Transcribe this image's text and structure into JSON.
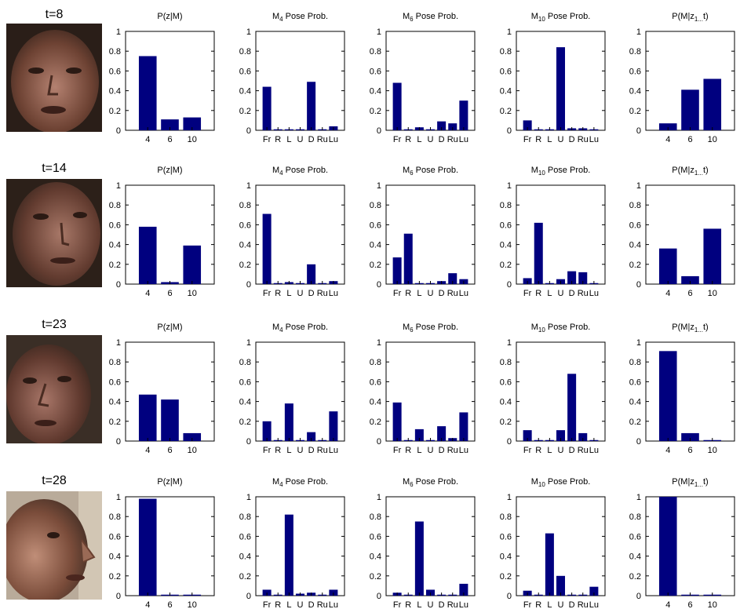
{
  "bar_color": "#00007f",
  "rows": [
    {
      "time_label": "t=8",
      "face_icon": "face-photo-icon",
      "charts": [
        {
          "type": "bar",
          "title": "P(z|M)",
          "categories": [
            "4",
            "6",
            "10"
          ],
          "values": [
            0.75,
            0.11,
            0.13
          ],
          "ylim": [
            0,
            1
          ],
          "yticks": [
            "0",
            "0.2",
            "0.4",
            "0.6",
            "0.8",
            "1"
          ]
        },
        {
          "type": "bar",
          "title": "M4 Pose Prob.",
          "categories": [
            "Fr",
            "R",
            "L",
            "U",
            "D",
            "Ru",
            "Lu"
          ],
          "values": [
            0.44,
            0.01,
            0.01,
            0.01,
            0.49,
            0.01,
            0.04
          ],
          "ylim": [
            0,
            1
          ],
          "yticks": [
            "0",
            "0.2",
            "0.4",
            "0.6",
            "0.8",
            "1"
          ]
        },
        {
          "type": "bar",
          "title": "M6 Pose Prob.",
          "categories": [
            "Fr",
            "R",
            "L",
            "U",
            "D",
            "Ru",
            "Lu"
          ],
          "values": [
            0.48,
            0.01,
            0.03,
            0.01,
            0.09,
            0.07,
            0.3
          ],
          "ylim": [
            0,
            1
          ],
          "yticks": [
            "0",
            "0.2",
            "0.4",
            "0.6",
            "0.8",
            "1"
          ]
        },
        {
          "type": "bar",
          "title": "M10 Pose Prob.",
          "categories": [
            "Fr",
            "R",
            "L",
            "U",
            "D",
            "Ru",
            "Lu"
          ],
          "values": [
            0.1,
            0.01,
            0.01,
            0.84,
            0.02,
            0.02,
            0.01
          ],
          "ylim": [
            0,
            1
          ],
          "yticks": [
            "0",
            "0.2",
            "0.4",
            "0.6",
            "0.8",
            "1"
          ]
        },
        {
          "type": "bar",
          "title": "P(M|z1...t)",
          "categories": [
            "4",
            "6",
            "10"
          ],
          "values": [
            0.07,
            0.41,
            0.52
          ],
          "ylim": [
            0,
            1
          ],
          "yticks": [
            "0",
            "0.2",
            "0.4",
            "0.6",
            "0.8",
            "1"
          ]
        }
      ]
    },
    {
      "time_label": "t=14",
      "face_icon": "face-photo-icon",
      "charts": [
        {
          "type": "bar",
          "title": "P(z|M)",
          "categories": [
            "4",
            "6",
            "10"
          ],
          "values": [
            0.58,
            0.02,
            0.39
          ],
          "ylim": [
            0,
            1
          ],
          "yticks": [
            "0",
            "0.2",
            "0.4",
            "0.6",
            "0.8",
            "1"
          ]
        },
        {
          "type": "bar",
          "title": "M4 Pose Prob.",
          "categories": [
            "Fr",
            "R",
            "L",
            "U",
            "D",
            "Ru",
            "Lu"
          ],
          "values": [
            0.71,
            0.01,
            0.02,
            0.01,
            0.2,
            0.01,
            0.03
          ],
          "ylim": [
            0,
            1
          ],
          "yticks": [
            "0",
            "0.2",
            "0.4",
            "0.6",
            "0.8",
            "1"
          ]
        },
        {
          "type": "bar",
          "title": "M6 Pose Prob.",
          "categories": [
            "Fr",
            "R",
            "L",
            "U",
            "D",
            "Ru",
            "Lu"
          ],
          "values": [
            0.27,
            0.51,
            0.01,
            0.01,
            0.03,
            0.11,
            0.05
          ],
          "ylim": [
            0,
            1
          ],
          "yticks": [
            "0",
            "0.2",
            "0.4",
            "0.6",
            "0.8",
            "1"
          ]
        },
        {
          "type": "bar",
          "title": "M10 Pose Prob.",
          "categories": [
            "Fr",
            "R",
            "L",
            "U",
            "D",
            "Ru",
            "Lu"
          ],
          "values": [
            0.06,
            0.62,
            0.01,
            0.05,
            0.13,
            0.12,
            0.01
          ],
          "ylim": [
            0,
            1
          ],
          "yticks": [
            "0",
            "0.2",
            "0.4",
            "0.6",
            "0.8",
            "1"
          ]
        },
        {
          "type": "bar",
          "title": "P(M|z1...t)",
          "categories": [
            "4",
            "6",
            "10"
          ],
          "values": [
            0.36,
            0.08,
            0.56
          ],
          "ylim": [
            0,
            1
          ],
          "yticks": [
            "0",
            "0.2",
            "0.4",
            "0.6",
            "0.8",
            "1"
          ]
        }
      ]
    },
    {
      "time_label": "t=23",
      "face_icon": "face-photo-icon",
      "charts": [
        {
          "type": "bar",
          "title": "P(z|M)",
          "categories": [
            "4",
            "6",
            "10"
          ],
          "values": [
            0.47,
            0.42,
            0.08
          ],
          "ylim": [
            0,
            1
          ],
          "yticks": [
            "0",
            "0.2",
            "0.4",
            "0.6",
            "0.8",
            "1"
          ]
        },
        {
          "type": "bar",
          "title": "M4 Pose Prob.",
          "categories": [
            "Fr",
            "R",
            "L",
            "U",
            "D",
            "Ru",
            "Lu"
          ],
          "values": [
            0.2,
            0.01,
            0.38,
            0.01,
            0.09,
            0.01,
            0.3
          ],
          "ylim": [
            0,
            1
          ],
          "yticks": [
            "0",
            "0.2",
            "0.4",
            "0.6",
            "0.8",
            "1"
          ]
        },
        {
          "type": "bar",
          "title": "M6 Pose Prob.",
          "categories": [
            "Fr",
            "R",
            "L",
            "U",
            "D",
            "Ru",
            "Lu"
          ],
          "values": [
            0.39,
            0.01,
            0.12,
            0.01,
            0.15,
            0.03,
            0.29
          ],
          "ylim": [
            0,
            1
          ],
          "yticks": [
            "0",
            "0.2",
            "0.4",
            "0.6",
            "0.8",
            "1"
          ]
        },
        {
          "type": "bar",
          "title": "M10 Pose Prob.",
          "categories": [
            "Fr",
            "R",
            "L",
            "U",
            "D",
            "Ru",
            "Lu"
          ],
          "values": [
            0.11,
            0.01,
            0.01,
            0.11,
            0.68,
            0.08,
            0.01
          ],
          "ylim": [
            0,
            1
          ],
          "yticks": [
            "0",
            "0.2",
            "0.4",
            "0.6",
            "0.8",
            "1"
          ]
        },
        {
          "type": "bar",
          "title": "P(M|z1...t)",
          "categories": [
            "4",
            "6",
            "10"
          ],
          "values": [
            0.91,
            0.08,
            0.01
          ],
          "ylim": [
            0,
            1
          ],
          "yticks": [
            "0",
            "0.2",
            "0.4",
            "0.6",
            "0.8",
            "1"
          ]
        }
      ]
    },
    {
      "time_label": "t=28",
      "face_icon": "face-photo-icon",
      "charts": [
        {
          "type": "bar",
          "title": "P(z|M)",
          "categories": [
            "4",
            "6",
            "10"
          ],
          "values": [
            0.98,
            0.01,
            0.01
          ],
          "ylim": [
            0,
            1
          ],
          "yticks": [
            "0",
            "0.2",
            "0.4",
            "0.6",
            "0.8",
            "1"
          ]
        },
        {
          "type": "bar",
          "title": "M4 Pose Prob.",
          "categories": [
            "Fr",
            "R",
            "L",
            "U",
            "D",
            "Ru",
            "Lu"
          ],
          "values": [
            0.06,
            0.01,
            0.82,
            0.02,
            0.03,
            0.01,
            0.06
          ],
          "ylim": [
            0,
            1
          ],
          "yticks": [
            "0",
            "0.2",
            "0.4",
            "0.6",
            "0.8",
            "1"
          ]
        },
        {
          "type": "bar",
          "title": "M6 Pose Prob.",
          "categories": [
            "Fr",
            "R",
            "L",
            "U",
            "D",
            "Ru",
            "Lu"
          ],
          "values": [
            0.03,
            0.01,
            0.75,
            0.06,
            0.01,
            0.01,
            0.12
          ],
          "ylim": [
            0,
            1
          ],
          "yticks": [
            "0",
            "0.2",
            "0.4",
            "0.6",
            "0.8",
            "1"
          ]
        },
        {
          "type": "bar",
          "title": "M10 Pose Prob.",
          "categories": [
            "Fr",
            "R",
            "L",
            "U",
            "D",
            "Ru",
            "Lu"
          ],
          "values": [
            0.05,
            0.01,
            0.63,
            0.2,
            0.01,
            0.01,
            0.09
          ],
          "ylim": [
            0,
            1
          ],
          "yticks": [
            "0",
            "0.2",
            "0.4",
            "0.6",
            "0.8",
            "1"
          ]
        },
        {
          "type": "bar",
          "title": "P(M|z1...t)",
          "categories": [
            "4",
            "6",
            "10"
          ],
          "values": [
            1.0,
            0.01,
            0.01
          ],
          "ylim": [
            0,
            1
          ],
          "yticks": [
            "0",
            "0.2",
            "0.4",
            "0.6",
            "0.8",
            "1"
          ]
        }
      ]
    }
  ]
}
